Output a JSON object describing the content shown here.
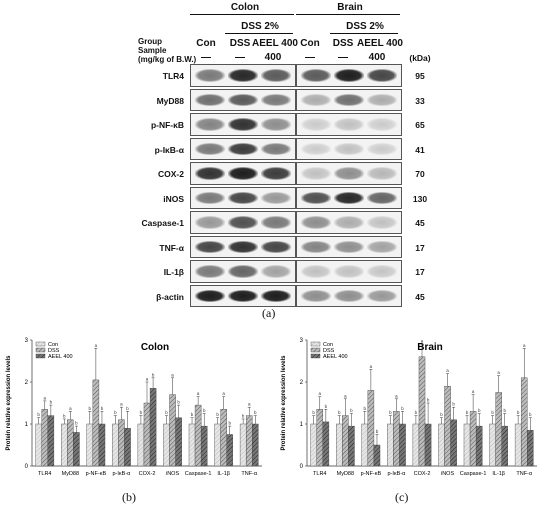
{
  "figure": {
    "top": {
      "tissue_colon": "Colon",
      "tissue_brain": "Brain",
      "group_label": "Group",
      "sample_label": "Sample",
      "sample_unit": "(mg/kg of B.W.)",
      "treatment_label": "DSS 2%",
      "col_con": "Con",
      "col_dss": "DSS",
      "col_aeel": "AEEL 400",
      "dash": "—",
      "dose": "400",
      "kda_header": "(kDa)",
      "rows": [
        {
          "label": "TLR4",
          "kda": "95"
        },
        {
          "label": "MyD88",
          "kda": "33"
        },
        {
          "label": "p-NF-κB",
          "kda": "65"
        },
        {
          "label": "p-IκB-α",
          "kda": "41"
        },
        {
          "label": "COX-2",
          "kda": "70"
        },
        {
          "label": "iNOS",
          "kda": "130"
        },
        {
          "label": "Caspase-1",
          "kda": "45"
        },
        {
          "label": "TNF-α",
          "kda": "17"
        },
        {
          "label": "IL-1β",
          "kda": "17"
        },
        {
          "label": "β-actin",
          "kda": "45"
        }
      ],
      "caption": "(a)"
    },
    "caption_b": "(b)",
    "caption_c": "(c)"
  },
  "chart_data": [
    {
      "type": "bar",
      "title": "Colon",
      "ylabel": "Protein relative expression levels",
      "ylim": [
        0,
        3
      ],
      "yticks": [
        "0",
        "1",
        "2",
        "3"
      ],
      "categories": [
        "TLR4",
        "MyD88",
        "p-NF-κB",
        "p-IκB-α",
        "COX-2",
        "iNOS",
        "Caspase-1",
        "IL-1β",
        "TNF-α"
      ],
      "series": [
        {
          "name": "Con",
          "values": [
            1,
            1,
            1,
            1,
            1,
            1,
            1,
            1,
            1
          ],
          "errors": [
            0.15,
            0.12,
            0.3,
            0.2,
            0.2,
            0.2,
            0.15,
            0.15,
            0.12
          ]
        },
        {
          "name": "DSS",
          "values": [
            1.35,
            1.1,
            2.05,
            1.1,
            1.5,
            1.7,
            1.45,
            1.35,
            1.2
          ],
          "errors": [
            0.2,
            0.2,
            0.75,
            0.3,
            0.5,
            0.4,
            0.2,
            0.3,
            0.2
          ]
        },
        {
          "name": "AEEL 400",
          "values": [
            1.2,
            0.8,
            1.0,
            0.9,
            1.85,
            1.15,
            0.95,
            0.75,
            1.0
          ],
          "errors": [
            0.25,
            0.15,
            0.3,
            0.4,
            0.25,
            0.3,
            0.3,
            0.2,
            0.2
          ]
        }
      ],
      "legend": "top-left"
    },
    {
      "type": "bar",
      "title": "Brain",
      "ylabel": "Protein relative expression levels",
      "ylim": [
        0,
        3
      ],
      "yticks": [
        "0",
        "1",
        "2",
        "3"
      ],
      "categories": [
        "TLR4",
        "MyD88",
        "p-NF-κB",
        "p-IκB-α",
        "COX-2",
        "iNOS",
        "Caspase-1",
        "IL-1β",
        "TNF-α"
      ],
      "series": [
        {
          "name": "Con",
          "values": [
            1,
            1,
            1,
            1,
            1,
            1,
            1,
            1,
            1
          ],
          "errors": [
            0.2,
            0.2,
            0.3,
            0.2,
            0.2,
            0.15,
            0.2,
            0.2,
            0.2
          ]
        },
        {
          "name": "DSS",
          "values": [
            1.35,
            1.2,
            1.8,
            1.3,
            2.6,
            1.9,
            1.3,
            1.75,
            2.1
          ],
          "errors": [
            0.3,
            0.4,
            0.5,
            0.3,
            0.3,
            0.3,
            0.4,
            0.4,
            0.7
          ]
        },
        {
          "name": "AEEL 400",
          "values": [
            1.05,
            0.95,
            0.5,
            1.0,
            1.0,
            1.1,
            0.95,
            0.95,
            0.85
          ],
          "errors": [
            0.3,
            0.3,
            0.25,
            0.3,
            0.5,
            0.3,
            0.3,
            0.3,
            0.3
          ]
        }
      ],
      "legend": "top-left"
    }
  ]
}
